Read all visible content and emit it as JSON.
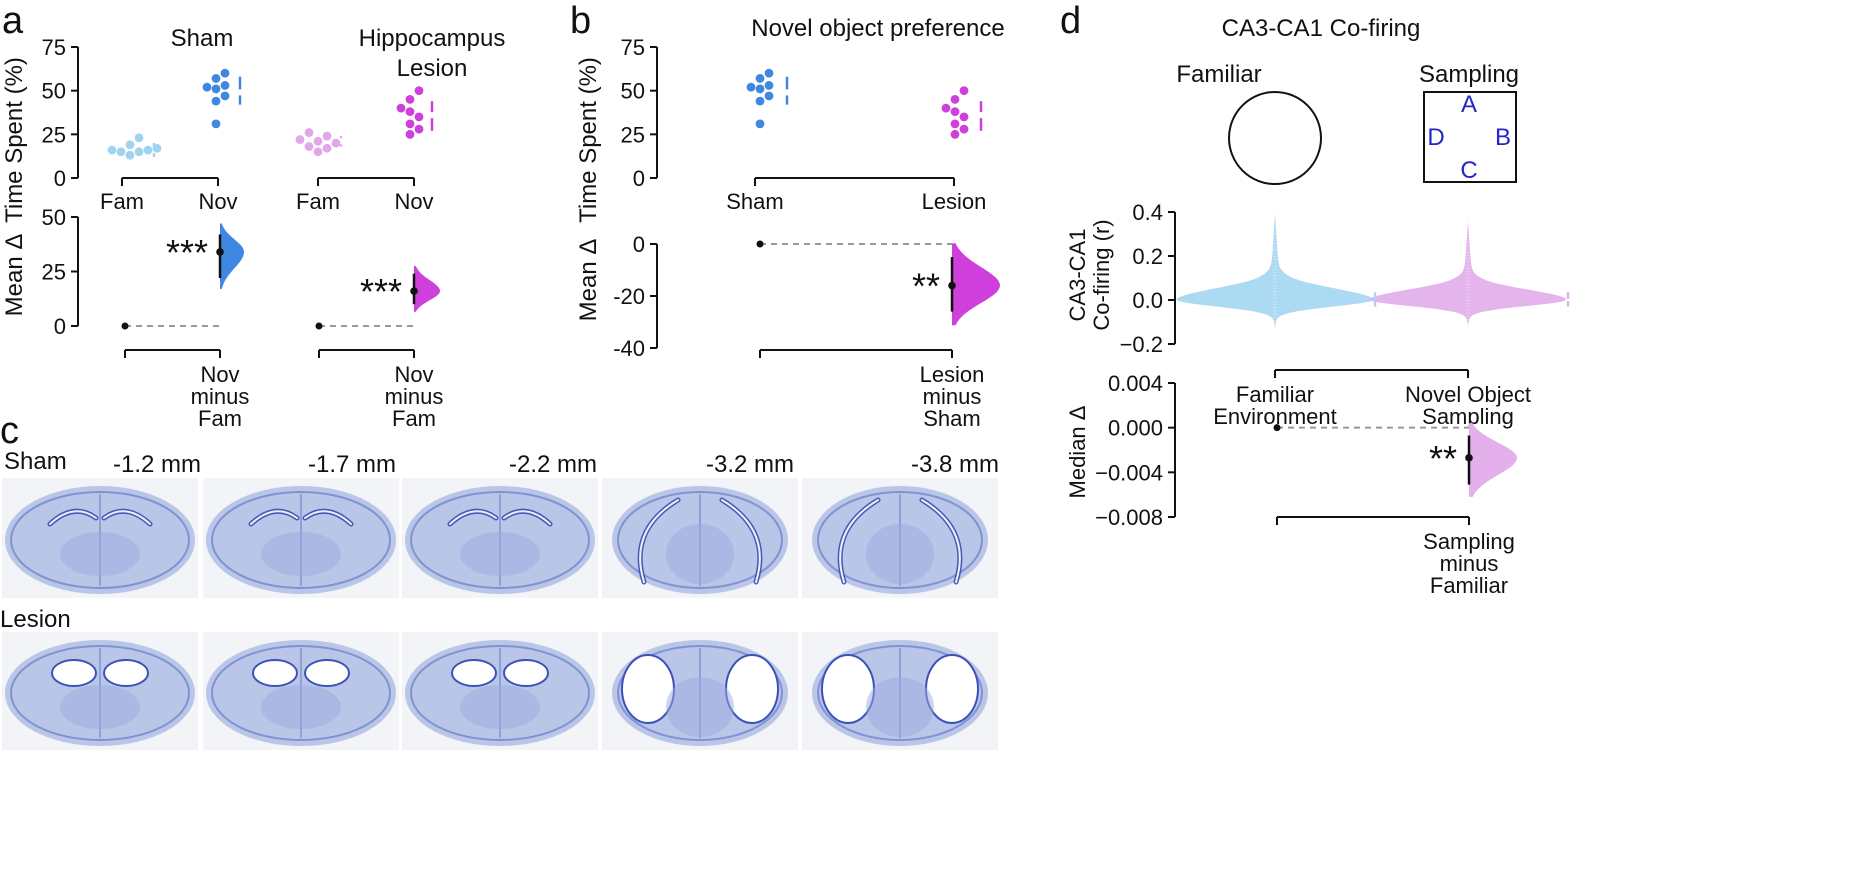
{
  "panel_labels": {
    "a": "a",
    "b": "b",
    "c": "c",
    "d": "d"
  },
  "colors": {
    "sham_fam": "#9fd3f0",
    "sham_nov": "#3f87e0",
    "lesion_fam": "#e2a6e9",
    "lesion_nov": "#cf3fdc",
    "sham": "#3f87e0",
    "lesion": "#cf3fdc",
    "familiar": "#a9d8f2",
    "sampling": "#e3b0ec",
    "letters": "#2626c8",
    "tissue": "#8aa0da"
  },
  "chart_data": [
    {
      "id": "a-sham-time",
      "type": "scatter",
      "title": "Sham",
      "ylabel": "Time Spent (%)",
      "ylim": [
        0,
        75
      ],
      "yticks": [
        0,
        25,
        50,
        75
      ],
      "categories": [
        "Fam",
        "Nov"
      ],
      "series": [
        {
          "name": "Fam",
          "values": [
            13,
            15,
            15,
            16,
            16,
            17,
            19,
            23
          ]
        },
        {
          "name": "Nov",
          "values": [
            31,
            44,
            47,
            51,
            52,
            53,
            57,
            60
          ]
        }
      ],
      "summary": [
        {
          "mean": 16,
          "lo": 12,
          "hi": 20
        },
        {
          "mean": 49,
          "lo": 42,
          "hi": 58
        }
      ]
    },
    {
      "id": "a-lesion-time",
      "type": "scatter",
      "title": "Hippocampus Lesion",
      "title_lines": [
        "Hippocampus",
        "Lesion"
      ],
      "ylim": [
        0,
        75
      ],
      "categories": [
        "Fam",
        "Nov"
      ],
      "series": [
        {
          "name": "Fam",
          "values": [
            15,
            17,
            18,
            20,
            21,
            22,
            24,
            26
          ]
        },
        {
          "name": "Nov",
          "values": [
            25,
            28,
            31,
            35,
            38,
            40,
            45,
            50
          ]
        }
      ],
      "summary": [
        {
          "mean": 21,
          "lo": 18,
          "hi": 24
        },
        {
          "mean": 36,
          "lo": 27,
          "hi": 44
        }
      ]
    },
    {
      "id": "a-sham-delta",
      "type": "estimation",
      "ylabel": "Mean Δ",
      "ylim": [
        0,
        50
      ],
      "yticks": [
        0,
        25,
        50
      ],
      "reference": 0,
      "estimate": 34,
      "ci": [
        22,
        42
      ],
      "significance": "***",
      "xlabel_lines": [
        "Nov",
        "minus",
        "Fam"
      ]
    },
    {
      "id": "a-lesion-delta",
      "type": "estimation",
      "ylim": [
        0,
        50
      ],
      "reference": 0,
      "estimate": 16,
      "ci": [
        10,
        24
      ],
      "significance": "***",
      "xlabel_lines": [
        "Nov",
        "minus",
        "Fam"
      ]
    },
    {
      "id": "b-time",
      "type": "scatter",
      "title": "Novel object preference",
      "ylabel": "Time Spent (%)",
      "ylim": [
        0,
        75
      ],
      "yticks": [
        0,
        25,
        50,
        75
      ],
      "categories": [
        "Sham",
        "Lesion"
      ],
      "series": [
        {
          "name": "Sham",
          "values": [
            31,
            44,
            47,
            51,
            52,
            53,
            57,
            60
          ]
        },
        {
          "name": "Lesion",
          "values": [
            25,
            28,
            31,
            35,
            38,
            40,
            45,
            50
          ]
        }
      ],
      "summary": [
        {
          "mean": 49,
          "lo": 42,
          "hi": 58
        },
        {
          "mean": 36,
          "lo": 27,
          "hi": 44
        }
      ]
    },
    {
      "id": "b-delta",
      "type": "estimation",
      "ylabel": "Mean Δ",
      "ylim": [
        -40,
        0
      ],
      "yticks": [
        0,
        -20,
        -40
      ],
      "reference": 0,
      "estimate": -16,
      "ci": [
        -26,
        -5
      ],
      "significance": "**",
      "xlabel_lines": [
        "Lesion",
        "minus",
        "Sham"
      ]
    },
    {
      "id": "d-cofiring",
      "type": "swarm",
      "title": "CA3-CA1 Co-firing",
      "ylabel": "CA3-CA1 Co-firing (r)",
      "ylabel_lines": [
        "CA3-CA1",
        "Co-firing (r)"
      ],
      "ylim": [
        -0.2,
        0.4
      ],
      "yticks": [
        0.4,
        0.2,
        0.0,
        -0.2
      ],
      "ytick_labels": [
        "0.4",
        "0.2",
        "0.0",
        "−0.2"
      ],
      "categories": [
        "Familiar Environment",
        "Novel Object Sampling"
      ],
      "category_lines": [
        [
          "Familiar",
          "Environment"
        ],
        [
          "Novel Object",
          "Sampling"
        ]
      ],
      "series": [
        {
          "name": "Familiar Environment",
          "median": 0.0,
          "min": -0.13,
          "max": 0.4
        },
        {
          "name": "Novel Object Sampling",
          "median": 0.0,
          "min": -0.12,
          "max": 0.36
        }
      ]
    },
    {
      "id": "d-delta",
      "type": "estimation",
      "ylabel": "Median Δ",
      "ylim": [
        -0.008,
        0.004
      ],
      "yticks": [
        0.004,
        0.0,
        -0.004,
        -0.008
      ],
      "ytick_labels": [
        "0.004",
        "0.000",
        "−0.004",
        "−0.008"
      ],
      "reference": 0.0,
      "estimate": -0.0027,
      "ci": [
        -0.0051,
        -0.0007
      ],
      "significance": "**",
      "xlabel_lines": [
        "Sampling",
        "minus",
        "Familiar"
      ]
    }
  ],
  "panel_d": {
    "arena_familiar_label": "Familiar",
    "arena_sampling_label": "Sampling",
    "object_labels": {
      "a": "A",
      "b": "B",
      "c": "C",
      "d": "D"
    }
  },
  "panel_c": {
    "row_labels": [
      "Sham",
      "Lesion"
    ],
    "coordinates": [
      "-1.2 mm",
      "-1.7 mm",
      "-2.2 mm",
      "-3.2 mm",
      "-3.8 mm"
    ]
  }
}
